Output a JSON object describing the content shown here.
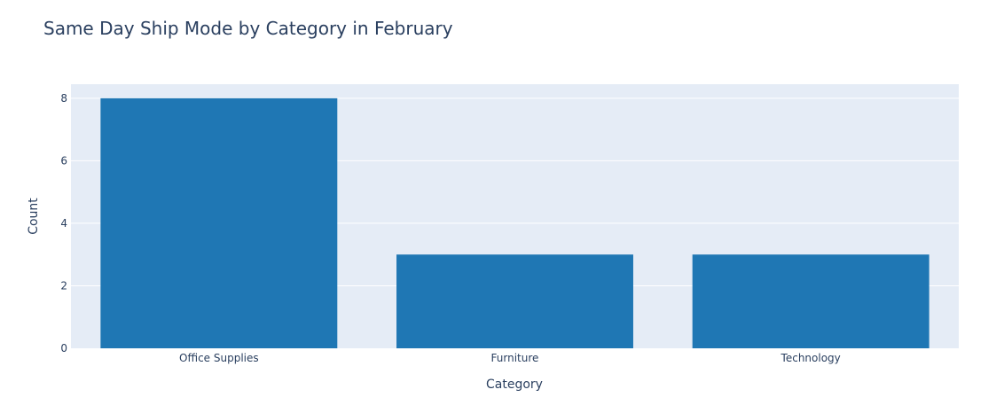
{
  "chart_data": {
    "type": "bar",
    "title": "Same Day Ship Mode by Category in February",
    "xlabel": "Category",
    "ylabel": "Count",
    "categories": [
      "Office Supplies",
      "Furniture",
      "Technology"
    ],
    "values": [
      8,
      3,
      3
    ],
    "ylim": [
      0,
      8.45
    ],
    "yticks": [
      0,
      2,
      4,
      6,
      8
    ],
    "grid": true,
    "legend": "none",
    "colors": {
      "bar": "#1f77b4",
      "plot_bg": "#e5ecf6",
      "grid": "#ffffff",
      "text": "#2a3f5f"
    }
  }
}
